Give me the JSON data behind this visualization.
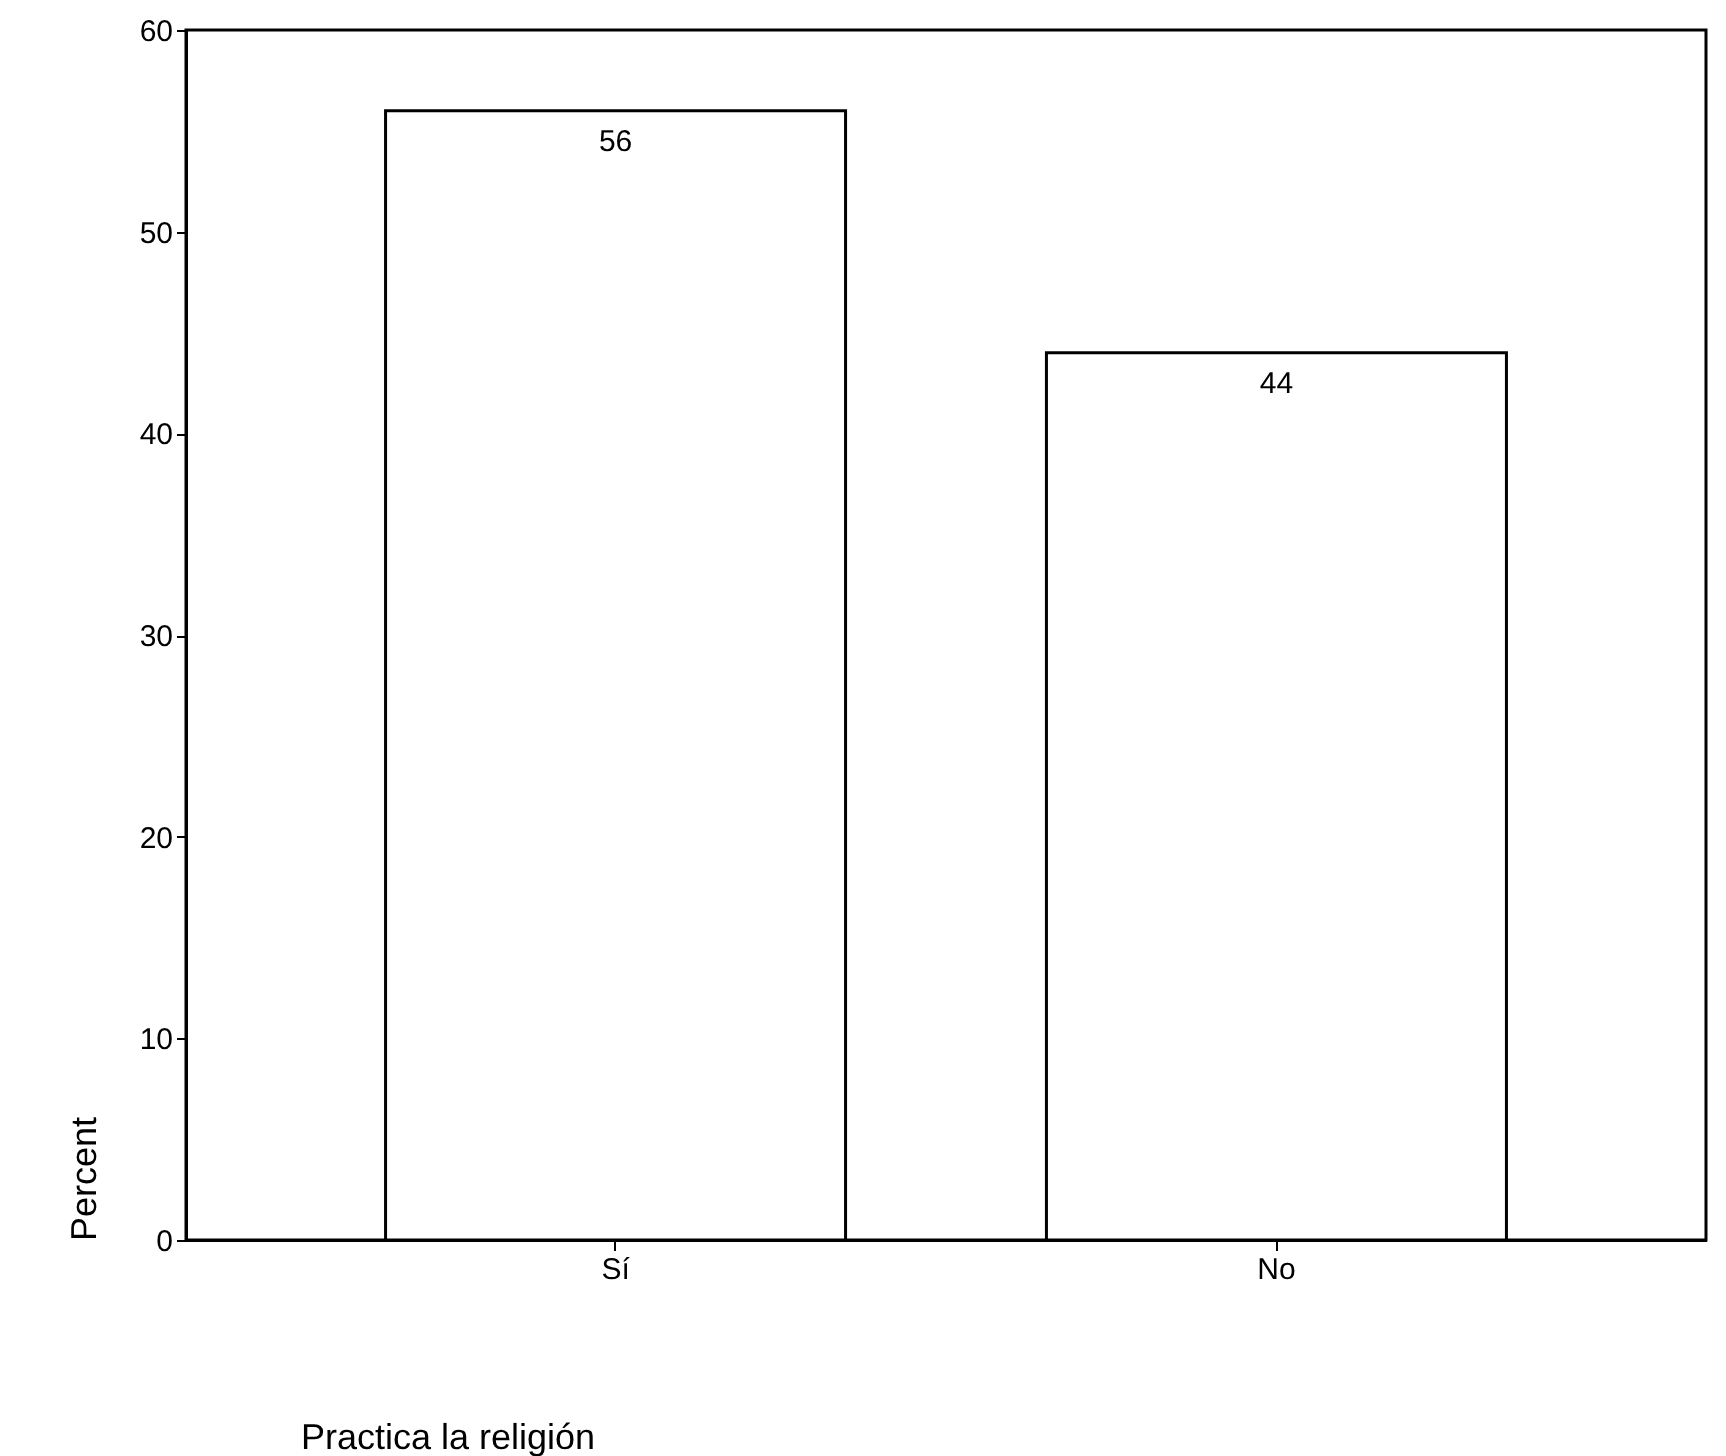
{
  "chart_data": {
    "type": "bar",
    "categories": [
      "Sí",
      "No"
    ],
    "values": [
      56,
      44
    ],
    "color": "#ffffff",
    "ylim": [
      0,
      60
    ],
    "yticks": [
      0,
      10,
      20,
      30,
      40,
      50,
      60
    ],
    "ylabel": "Percent",
    "xlabel": "Practica la religión",
    "data_labels": true,
    "grid": false
  }
}
